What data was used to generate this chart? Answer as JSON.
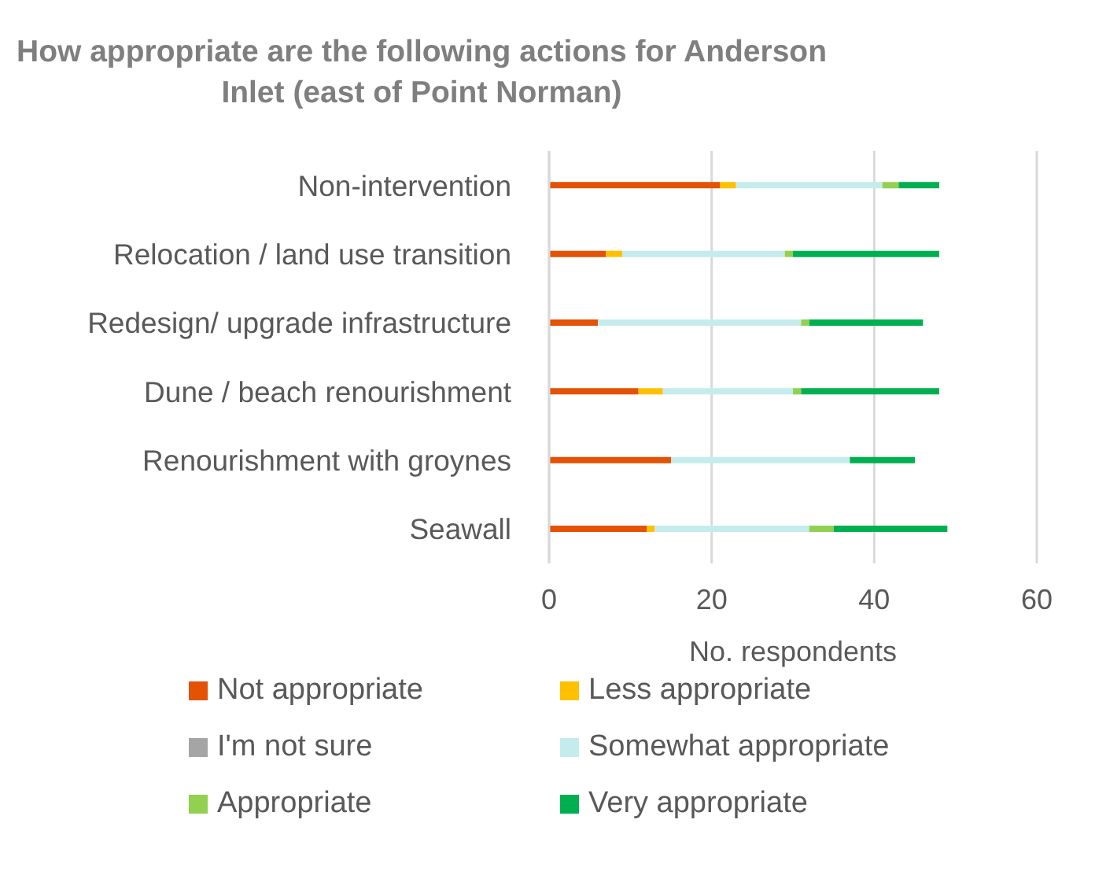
{
  "chart_data": {
    "type": "bar",
    "orientation": "horizontal",
    "stacked": true,
    "title": "How appropriate are the following actions for Anderson Inlet (east of Point Norman)",
    "xlabel": "No. respondents",
    "categories": [
      "Non-intervention",
      "Relocation / land use transition",
      "Redesign/ upgrade infrastructure",
      "Dune / beach renourishment",
      "Renourishment with groynes",
      "Seawall"
    ],
    "series": [
      {
        "name": "Not appropriate",
        "color": "#e35205",
        "values": [
          21,
          7,
          6,
          11,
          15,
          12
        ]
      },
      {
        "name": "Less appropriate",
        "color": "#ffc000",
        "values": [
          2,
          2,
          0,
          3,
          0,
          1
        ]
      },
      {
        "name": "I'm not sure",
        "color": "#a5a5a5",
        "values": [
          0,
          0,
          0,
          0,
          0,
          0
        ]
      },
      {
        "name": "Somewhat appropriate",
        "color": "#c5ecec",
        "values": [
          18,
          20,
          25,
          16,
          22,
          19
        ]
      },
      {
        "name": "Appropriate",
        "color": "#92d050",
        "values": [
          2,
          1,
          1,
          1,
          0,
          3
        ]
      },
      {
        "name": "Very appropriate",
        "color": "#00b050",
        "values": [
          5,
          18,
          14,
          17,
          8,
          14
        ]
      }
    ],
    "xlim": [
      0,
      60
    ],
    "xticks": [
      0,
      20,
      40,
      60
    ],
    "grid": "x",
    "legend": "bottom"
  }
}
